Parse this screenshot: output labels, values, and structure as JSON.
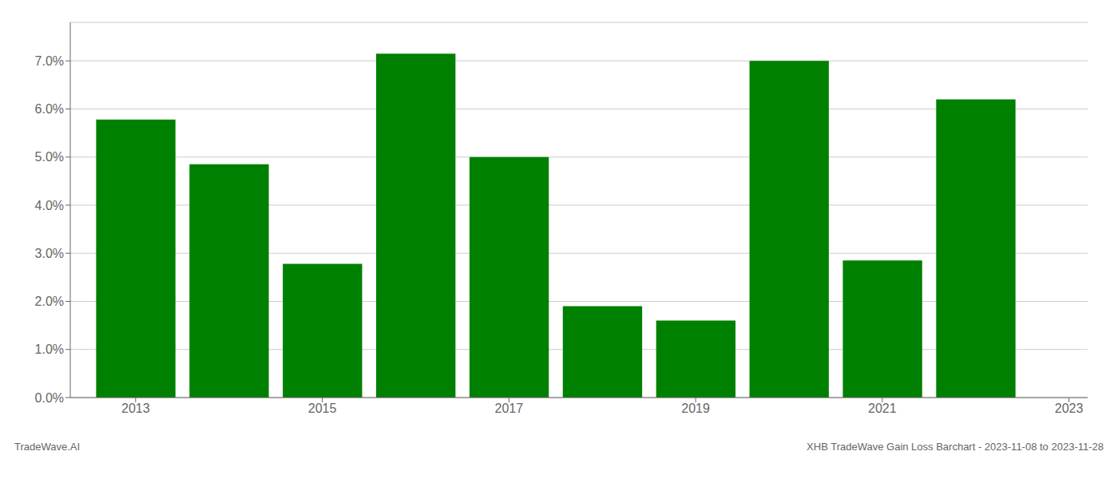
{
  "chart_data": {
    "type": "bar",
    "x": [
      2013,
      2014,
      2015,
      2016,
      2017,
      2018,
      2019,
      2020,
      2021,
      2022
    ],
    "values": [
      0.0578,
      0.0485,
      0.0278,
      0.0715,
      0.05,
      0.019,
      0.016,
      0.07,
      0.0285,
      0.062
    ],
    "color": "#008000",
    "xlim": [
      2012.3,
      2023.2
    ],
    "xticks": [
      2013,
      2015,
      2017,
      2019,
      2021,
      2023
    ],
    "ylim": [
      0,
      0.078
    ],
    "yticks": [
      {
        "value": 0,
        "label": "0.0%"
      },
      {
        "value": 0.01,
        "label": "1.0%"
      },
      {
        "value": 0.02,
        "label": "2.0%"
      },
      {
        "value": 0.03,
        "label": "3.0%"
      },
      {
        "value": 0.04,
        "label": "4.0%"
      },
      {
        "value": 0.05,
        "label": "5.0%"
      },
      {
        "value": 0.06,
        "label": "6.0%"
      },
      {
        "value": 0.07,
        "label": "7.0%"
      }
    ],
    "grid": true,
    "annotations": [
      "TradeWave.AI",
      "XHB TradeWave Gain Loss Barchart - 2023-11-08 to 2023-11-28"
    ]
  }
}
